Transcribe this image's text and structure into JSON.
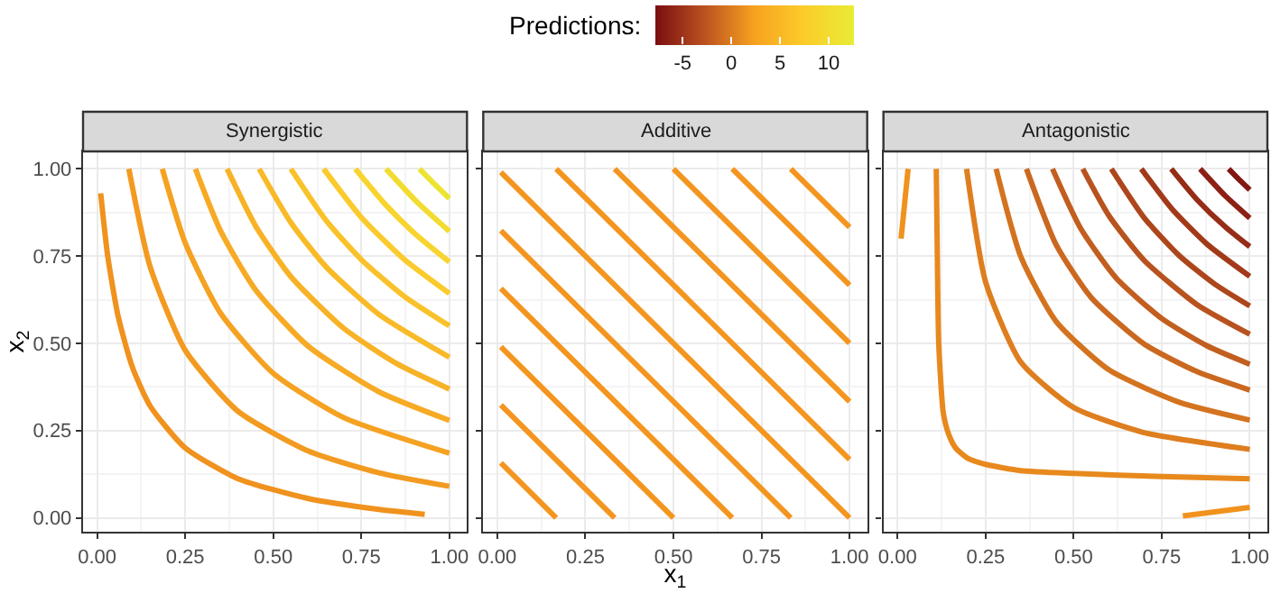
{
  "chart_data": [
    {
      "type": "line",
      "title": "Synergistic",
      "ylabel": "x$_{2}$",
      "clabel": "Predictions:",
      "clim": [
        -7.8,
        12.6
      ],
      "cticks": [
        -5,
        0,
        5,
        10
      ],
      "colors": [
        "#7a0e12",
        "#bb5220",
        "#f7a21f",
        "#fccc2a",
        "#e8ec35"
      ],
      "xlim": [
        -0.04,
        1.05
      ],
      "ylim": [
        -0.04,
        1.05
      ],
      "xticks": [
        {
          "value": 0,
          "label": "0.00"
        },
        {
          "value": 0.25,
          "label": "0.25"
        },
        {
          "value": 0.5,
          "label": "0.50"
        },
        {
          "value": 0.75,
          "label": "0.75"
        },
        {
          "value": 1,
          "label": "1.00"
        }
      ],
      "yticks": [
        {
          "value": 0,
          "label": "0.00"
        },
        {
          "value": 0.25,
          "label": "0.25"
        },
        {
          "value": 0.5,
          "label": "0.50"
        },
        {
          "value": 0.75,
          "label": "0.75"
        },
        {
          "value": 1,
          "label": "1.00"
        }
      ],
      "grid": true,
      "marker": "none",
      "line_style": "solid",
      "series": [
        {
          "color": "#f0921e",
          "x": [
            0.01,
            0.03,
            0.06,
            0.1,
            0.15,
            0.25,
            0.4,
            0.6,
            0.8,
            0.93
          ],
          "values": [
            0.93,
            0.75,
            0.576,
            0.432,
            0.321,
            0.2,
            0.112,
            0.055,
            0.024,
            0.01
          ]
        },
        {
          "color": "#f39a20",
          "x": [
            0.09,
            0.15,
            0.25,
            0.4,
            0.6,
            0.8,
            1.0
          ],
          "values": [
            1.0,
            0.721,
            0.48,
            0.305,
            0.191,
            0.129,
            0.09
          ]
        },
        {
          "color": "#f5a222",
          "x": [
            0.185,
            0.25,
            0.35,
            0.5,
            0.7,
            1.0
          ],
          "values": [
            1.0,
            0.788,
            0.587,
            0.414,
            0.287,
            0.185
          ]
        },
        {
          "color": "#f7aa24",
          "x": [
            0.279,
            0.35,
            0.45,
            0.6,
            0.8,
            1.0
          ],
          "values": [
            1.0,
            0.823,
            0.653,
            0.491,
            0.361,
            0.279
          ]
        },
        {
          "color": "#f8b226",
          "x": [
            0.369,
            0.45,
            0.55,
            0.7,
            0.85,
            1.0
          ],
          "values": [
            1.0,
            0.836,
            0.691,
            0.543,
            0.442,
            0.369
          ]
        },
        {
          "color": "#f9ba28",
          "x": [
            0.46,
            0.55,
            0.65,
            0.8,
            1.0
          ],
          "values": [
            1.0,
            0.846,
            0.719,
            0.583,
            0.46
          ]
        },
        {
          "color": "#fac22a",
          "x": [
            0.55,
            0.65,
            0.75,
            0.87,
            1.0
          ],
          "values": [
            1.0,
            0.852,
            0.74,
            0.636,
            0.55
          ]
        },
        {
          "color": "#fbca2c",
          "x": [
            0.643,
            0.75,
            0.87,
            1.0
          ],
          "values": [
            1.0,
            0.861,
            0.742,
            0.643
          ]
        },
        {
          "color": "#f8d42e",
          "x": [
            0.733,
            0.82,
            0.91,
            1.0
          ],
          "values": [
            1.0,
            0.896,
            0.807,
            0.733
          ]
        },
        {
          "color": "#f2dc30",
          "x": [
            0.82,
            0.91,
            1.0
          ],
          "values": [
            1.0,
            0.903,
            0.821
          ]
        },
        {
          "color": "#ece432",
          "x": [
            0.915,
            0.96,
            1.0
          ],
          "values": [
            1.0,
            0.954,
            0.915
          ]
        }
      ]
    },
    {
      "type": "line",
      "title": "Additive",
      "xlabel": "x$_{1}$",
      "tick_labels": "x",
      "xlim": [
        -0.04,
        1.05
      ],
      "ylim": [
        -0.04,
        1.05
      ],
      "xticks": [
        {
          "value": 0,
          "label": "0.00"
        },
        {
          "value": 0.25,
          "label": "0.25"
        },
        {
          "value": 0.5,
          "label": "0.50"
        },
        {
          "value": 0.75,
          "label": "0.75"
        },
        {
          "value": 1,
          "label": "1.00"
        }
      ],
      "yticks": [
        {
          "value": 0,
          "label": null
        },
        {
          "value": 0.25,
          "label": null
        },
        {
          "value": 0.5,
          "label": null
        },
        {
          "value": 0.75,
          "label": null
        },
        {
          "value": 1,
          "label": null
        }
      ],
      "grid": true,
      "marker": "none",
      "line_style": "solid",
      "series": [
        {
          "color": "#f4951f",
          "x": [
            0.01,
            0.167
          ],
          "values": [
            0.157,
            0.0
          ]
        },
        {
          "color": "#f4951f",
          "x": [
            0.01,
            0.333
          ],
          "values": [
            0.323,
            0.0
          ]
        },
        {
          "color": "#f4951f",
          "x": [
            0.01,
            0.5
          ],
          "values": [
            0.49,
            0.0
          ]
        },
        {
          "color": "#f4951f",
          "x": [
            0.01,
            0.667
          ],
          "values": [
            0.657,
            0.0
          ]
        },
        {
          "color": "#f4951f",
          "x": [
            0.01,
            0.833
          ],
          "values": [
            0.823,
            0.0
          ]
        },
        {
          "color": "#f4951f",
          "x": [
            0.01,
            1.0
          ],
          "values": [
            0.99,
            0.0
          ]
        },
        {
          "color": "#f4951f",
          "x": [
            0.167,
            1.0
          ],
          "values": [
            1.0,
            0.167
          ]
        },
        {
          "color": "#f4951f",
          "x": [
            0.333,
            1.0
          ],
          "values": [
            1.0,
            0.333
          ]
        },
        {
          "color": "#f4951f",
          "x": [
            0.5,
            1.0
          ],
          "values": [
            1.0,
            0.5
          ]
        },
        {
          "color": "#f4951f",
          "x": [
            0.667,
            1.0
          ],
          "values": [
            1.0,
            0.667
          ]
        },
        {
          "color": "#f4951f",
          "x": [
            0.833,
            1.0
          ],
          "values": [
            1.0,
            0.833
          ]
        }
      ]
    },
    {
      "type": "line",
      "title": "Antagonistic",
      "tick_labels": "x",
      "xlim": [
        -0.04,
        1.05
      ],
      "ylim": [
        -0.04,
        1.05
      ],
      "xticks": [
        {
          "value": 0,
          "label": "0.00"
        },
        {
          "value": 0.25,
          "label": "0.25"
        },
        {
          "value": 0.5,
          "label": "0.50"
        },
        {
          "value": 0.75,
          "label": "0.75"
        },
        {
          "value": 1,
          "label": "1.00"
        }
      ],
      "yticks": [
        {
          "value": 0,
          "label": null
        },
        {
          "value": 0.25,
          "label": null
        },
        {
          "value": 0.5,
          "label": null
        },
        {
          "value": 0.75,
          "label": null
        },
        {
          "value": 1,
          "label": null
        }
      ],
      "grid": true,
      "marker": "none",
      "line_style": "solid",
      "series": [
        {
          "color": "#f0921e",
          "x": [
            0.01,
            0.02,
            0.03
          ],
          "values": [
            0.8,
            0.9,
            1.0
          ]
        },
        {
          "color": "#f0921e",
          "x": [
            0.81,
            0.9,
            1.0
          ],
          "values": [
            0.005,
            0.017,
            0.03
          ]
        },
        {
          "color": "#e8891d",
          "x": [
            0.11,
            0.113,
            0.117,
            0.13,
            0.145,
            0.165,
            0.2,
            0.25,
            0.35,
            0.5,
            0.75,
            1.0
          ],
          "values": [
            1.0,
            0.75,
            0.5,
            0.3,
            0.24,
            0.2,
            0.17,
            0.153,
            0.135,
            0.127,
            0.118,
            0.112
          ]
        },
        {
          "color": "#de7e1f",
          "x": [
            0.196,
            0.25,
            0.35,
            0.5,
            0.7,
            1.0
          ],
          "values": [
            1.0,
            0.676,
            0.446,
            0.316,
            0.244,
            0.196
          ]
        },
        {
          "color": "#d4731f",
          "x": [
            0.28,
            0.35,
            0.45,
            0.6,
            0.8,
            1.0
          ],
          "values": [
            1.0,
            0.748,
            0.563,
            0.424,
            0.331,
            0.28
          ]
        },
        {
          "color": "#cb6820",
          "x": [
            0.366,
            0.45,
            0.55,
            0.7,
            0.85,
            1.0
          ],
          "values": [
            1.0,
            0.783,
            0.631,
            0.498,
            0.419,
            0.366
          ]
        },
        {
          "color": "#c25e20",
          "x": [
            0.44,
            0.52,
            0.62,
            0.75,
            0.88,
            1.0
          ],
          "values": [
            1.0,
            0.829,
            0.688,
            0.571,
            0.492,
            0.44
          ]
        },
        {
          "color": "#b8531f",
          "x": [
            0.526,
            0.6,
            0.7,
            0.85,
            1.0
          ],
          "values": [
            1.0,
            0.866,
            0.738,
            0.611,
            0.526
          ]
        },
        {
          "color": "#ad461c",
          "x": [
            0.607,
            0.7,
            0.8,
            0.9,
            1.0
          ],
          "values": [
            1.0,
            0.86,
            0.751,
            0.67,
            0.607
          ]
        },
        {
          "color": "#a23a1a",
          "x": [
            0.692,
            0.78,
            0.88,
            1.0
          ],
          "values": [
            1.0,
            0.884,
            0.783,
            0.692
          ]
        },
        {
          "color": "#962d17",
          "x": [
            0.777,
            0.85,
            0.93,
            1.0
          ],
          "values": [
            1.0,
            0.912,
            0.834,
            0.777
          ]
        },
        {
          "color": "#8c2014",
          "x": [
            0.859,
            0.93,
            1.0
          ],
          "values": [
            1.0,
            0.923,
            0.859
          ]
        },
        {
          "color": "#821612",
          "x": [
            0.94,
            0.97,
            1.0
          ],
          "values": [
            1.0,
            0.969,
            0.94
          ]
        }
      ]
    }
  ]
}
